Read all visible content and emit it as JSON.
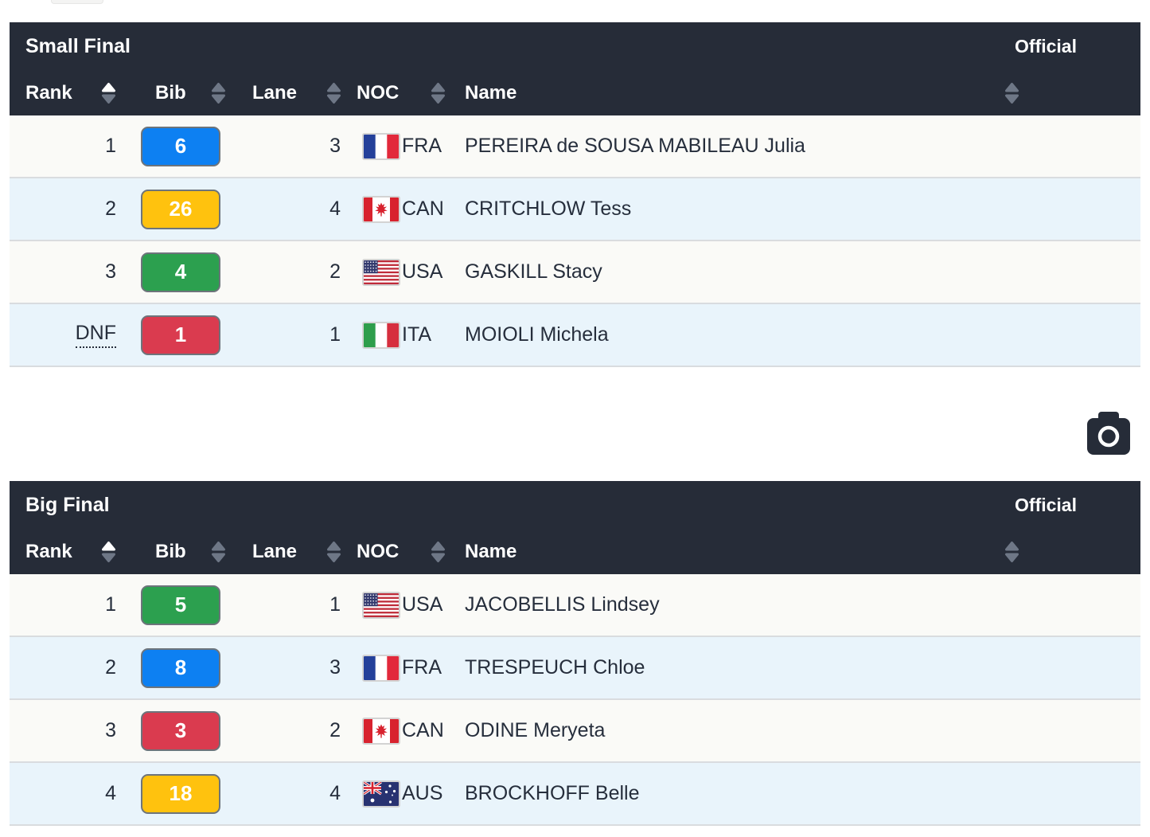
{
  "page": {
    "background": "#ffffff"
  },
  "icons": {
    "sort": "sort-updown-icon",
    "camera": "camera-icon",
    "flags": [
      "flag-fra-icon",
      "flag-can-icon",
      "flag-usa-icon",
      "flag-ita-icon",
      "flag-aus-icon"
    ]
  },
  "colors": {
    "header_bg": "#262c38",
    "header_text": "#ffffff",
    "row_bg": "#fafaf7",
    "row_alt_bg": "#e9f4fb",
    "row_border": "#d9dcdf",
    "text": "#262e3c",
    "sort_active": "#ffffff",
    "sort_inactive": "#6e7786",
    "bib_blue": "#0d80f2",
    "bib_yellow": "#ffc20e",
    "bib_green": "#2ca04f",
    "bib_red": "#da3b4f",
    "bib_border": "#6d747b"
  },
  "tables": [
    {
      "title": "Small Final",
      "status": "Official",
      "columns": [
        {
          "label": "Rank",
          "sort": "asc"
        },
        {
          "label": "Bib",
          "sort": "none"
        },
        {
          "label": "Lane",
          "sort": "none"
        },
        {
          "label": "NOC",
          "sort": "none"
        },
        {
          "label": "Name",
          "sort": "none"
        },
        {
          "label": "",
          "sort": "none"
        }
      ],
      "rows": [
        {
          "rank": "1",
          "bib": "6",
          "bib_color": "blue",
          "lane": "3",
          "noc": "FRA",
          "name": "PEREIRA de SOUSA MABILEAU Julia",
          "dnf": false
        },
        {
          "rank": "2",
          "bib": "26",
          "bib_color": "yellow",
          "lane": "4",
          "noc": "CAN",
          "name": "CRITCHLOW Tess",
          "dnf": false
        },
        {
          "rank": "3",
          "bib": "4",
          "bib_color": "green",
          "lane": "2",
          "noc": "USA",
          "name": "GASKILL Stacy",
          "dnf": false
        },
        {
          "rank": "DNF",
          "bib": "1",
          "bib_color": "red",
          "lane": "1",
          "noc": "ITA",
          "name": "MOIOLI Michela",
          "dnf": true
        }
      ]
    },
    {
      "title": "Big Final",
      "status": "Official",
      "columns": [
        {
          "label": "Rank",
          "sort": "asc"
        },
        {
          "label": "Bib",
          "sort": "none"
        },
        {
          "label": "Lane",
          "sort": "none"
        },
        {
          "label": "NOC",
          "sort": "none"
        },
        {
          "label": "Name",
          "sort": "none"
        },
        {
          "label": "",
          "sort": "none"
        }
      ],
      "rows": [
        {
          "rank": "1",
          "bib": "5",
          "bib_color": "green",
          "lane": "1",
          "noc": "USA",
          "name": "JACOBELLIS Lindsey",
          "dnf": false
        },
        {
          "rank": "2",
          "bib": "8",
          "bib_color": "blue",
          "lane": "3",
          "noc": "FRA",
          "name": "TRESPEUCH Chloe",
          "dnf": false
        },
        {
          "rank": "3",
          "bib": "3",
          "bib_color": "red",
          "lane": "2",
          "noc": "CAN",
          "name": "ODINE Meryeta",
          "dnf": false
        },
        {
          "rank": "4",
          "bib": "18",
          "bib_color": "yellow",
          "lane": "4",
          "noc": "AUS",
          "name": "BROCKHOFF Belle",
          "dnf": false
        }
      ]
    }
  ]
}
